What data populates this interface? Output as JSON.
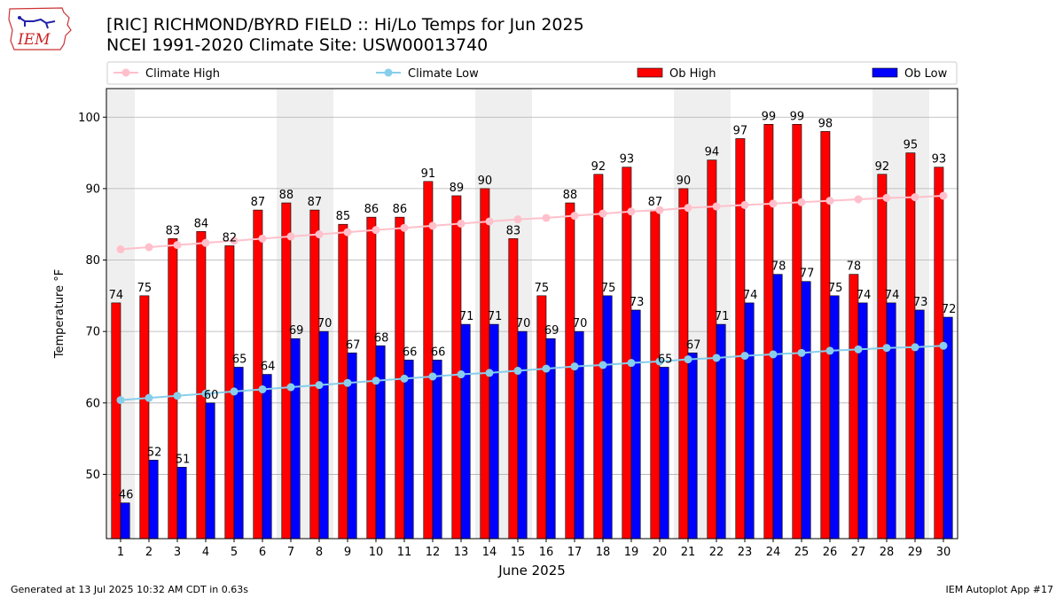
{
  "header": {
    "title_line1": "[RIC] RICHMOND/BYRD FIELD :: Hi/Lo Temps for Jun 2025",
    "title_line2": "NCEI 1991-2020 Climate Site: USW00013740",
    "logo_text": "IEM"
  },
  "footer": {
    "generated": "Generated at 13 Jul 2025 10:32 AM CDT in 0.63s",
    "app": "IEM Autoplot App #17"
  },
  "chart_data": {
    "type": "bar",
    "xlabel": "June 2025",
    "ylabel": "Temperature °F",
    "ylim": [
      41,
      104
    ],
    "yticks": [
      50,
      60,
      70,
      80,
      90,
      100
    ],
    "grid": true,
    "legend_position": "top",
    "weekend_shading": true,
    "x": [
      1,
      2,
      3,
      4,
      5,
      6,
      7,
      8,
      9,
      10,
      11,
      12,
      13,
      14,
      15,
      16,
      17,
      18,
      19,
      20,
      21,
      22,
      23,
      24,
      25,
      26,
      27,
      28,
      29,
      30
    ],
    "weekend_days": [
      1,
      7,
      8,
      14,
      15,
      21,
      22,
      28,
      29
    ],
    "series": [
      {
        "name": "Climate High",
        "kind": "line",
        "color": "#ffc0cb",
        "values": [
          81.5,
          81.8,
          82.1,
          82.4,
          82.7,
          83.0,
          83.3,
          83.6,
          83.9,
          84.2,
          84.5,
          84.8,
          85.1,
          85.4,
          85.7,
          85.9,
          86.2,
          86.5,
          86.8,
          87.0,
          87.3,
          87.5,
          87.7,
          87.9,
          88.1,
          88.3,
          88.5,
          88.7,
          88.8,
          89.0
        ]
      },
      {
        "name": "Climate Low",
        "kind": "line",
        "color": "#87ceeb",
        "values": [
          60.4,
          60.7,
          61.0,
          61.3,
          61.6,
          61.9,
          62.2,
          62.5,
          62.8,
          63.1,
          63.4,
          63.7,
          64.0,
          64.2,
          64.5,
          64.8,
          65.1,
          65.3,
          65.6,
          65.8,
          66.1,
          66.3,
          66.6,
          66.8,
          67.0,
          67.3,
          67.5,
          67.7,
          67.8,
          68.0
        ]
      },
      {
        "name": "Ob High",
        "kind": "bar",
        "color": "#ff0000",
        "values": [
          74,
          75,
          83,
          84,
          82,
          87,
          88,
          87,
          85,
          86,
          86,
          91,
          89,
          90,
          83,
          75,
          88,
          92,
          93,
          87,
          90,
          94,
          97,
          99,
          99,
          98,
          78,
          92,
          95,
          93
        ]
      },
      {
        "name": "Ob Low",
        "kind": "bar",
        "color": "#0000ff",
        "values": [
          46,
          52,
          51,
          60,
          65,
          64,
          69,
          70,
          67,
          68,
          66,
          66,
          71,
          71,
          70,
          69,
          70,
          75,
          73,
          65,
          67,
          71,
          74,
          78,
          77,
          75,
          74,
          74,
          73,
          72
        ]
      }
    ]
  }
}
